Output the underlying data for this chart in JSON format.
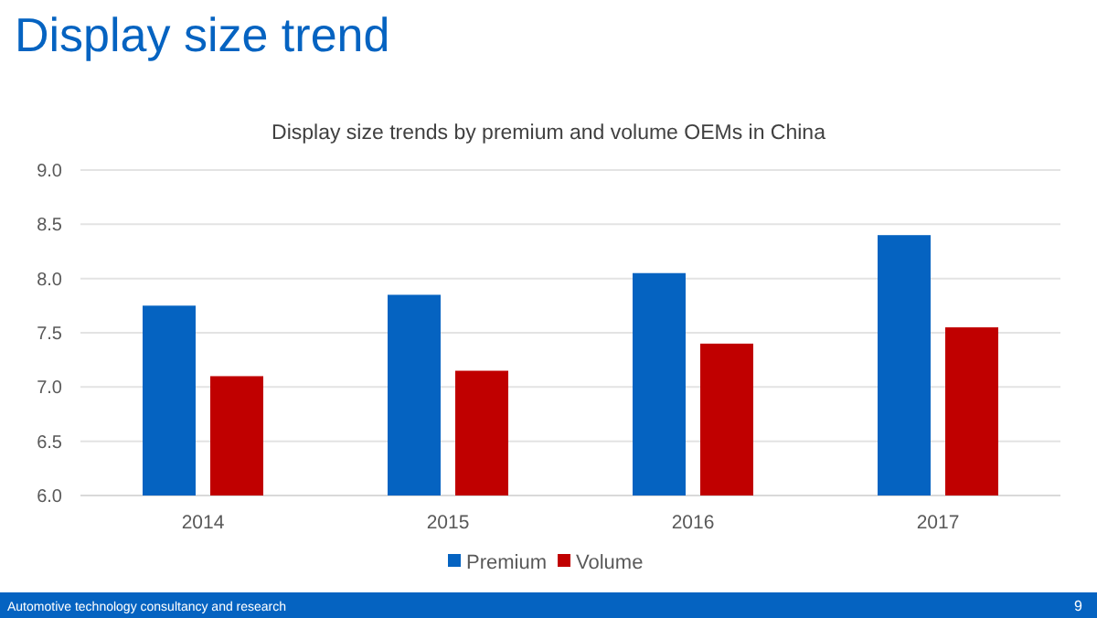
{
  "chart_data": {
    "type": "bar",
    "title": "Display size trend",
    "subtitle": "Display size trends by premium and volume OEMs in China",
    "categories": [
      "2014",
      "2015",
      "2016",
      "2017"
    ],
    "series": [
      {
        "name": "Premium",
        "color": "#0563c1",
        "values": [
          7.75,
          7.85,
          8.05,
          8.4
        ]
      },
      {
        "name": "Volume",
        "color": "#c00000",
        "values": [
          7.1,
          7.15,
          7.4,
          7.55
        ]
      }
    ],
    "ylim": [
      6,
      9
    ],
    "yticks": [
      {
        "value": 6,
        "label": "6.0"
      },
      {
        "value": 6.5,
        "label": "6.5"
      },
      {
        "value": 7,
        "label": "7.0"
      },
      {
        "value": 7.5,
        "label": "7.5"
      },
      {
        "value": 8,
        "label": "8.0"
      },
      {
        "value": 8.5,
        "label": "8.5"
      },
      {
        "value": 9,
        "label": "9.0"
      }
    ],
    "grid": "y",
    "legend": "bottom",
    "annotations": [
      "Automotive technology consultancy and research",
      "9"
    ]
  }
}
